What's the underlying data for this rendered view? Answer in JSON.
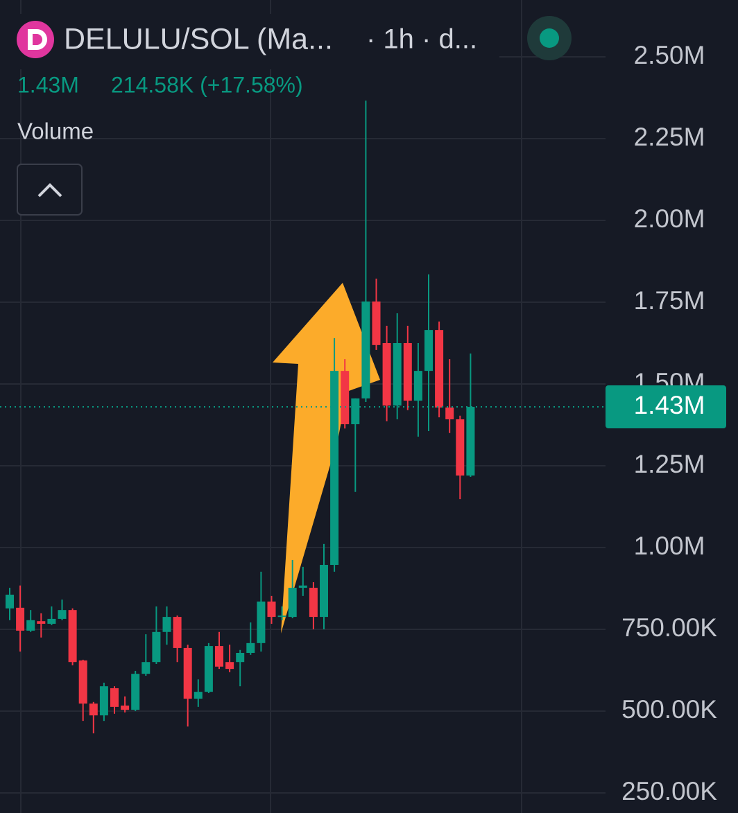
{
  "chart_data": {
    "type": "candlestick",
    "symbol": "DELULU/SOL (Ma...",
    "interval": "· 1h · d...",
    "price": "1.43M",
    "change": "214.58K (+17.58%)",
    "indicator": "Volume",
    "up_color": "#089981",
    "down_color": "#f23645",
    "open": [
      814000,
      816000,
      746000,
      775000,
      767000,
      782000,
      809000,
      655000,
      523000,
      487000,
      570000,
      517000,
      504000,
      614000,
      650000,
      742000,
      788000,
      693000,
      538000,
      559000,
      699000,
      650000,
      650000,
      678000,
      708000,
      835000,
      788000,
      788000,
      877000,
      877000,
      788000,
      947000,
      1540000,
      1377000,
      1456000,
      1752000,
      1625000,
      1434000,
      1625000,
      1449000,
      1540000,
      1665000,
      1428000,
      1392000,
      1220000
    ],
    "high": [
      877000,
      884000,
      809000,
      799000,
      820000,
      841000,
      814000,
      657000,
      528000,
      587000,
      576000,
      545000,
      623000,
      735000,
      820000,
      820000,
      792000,
      703000,
      597000,
      708000,
      742000,
      703000,
      687000,
      771000,
      926000,
      852000,
      820000,
      962000,
      941000,
      894000,
      1011000,
      1640000,
      1576000,
      1456000,
      2366000,
      1822000,
      1678000,
      1716000,
      1678000,
      1625000,
      1835000,
      1691000,
      1576000,
      1403000,
      1593000
    ],
    "low": [
      778000,
      682000,
      742000,
      725000,
      763000,
      778000,
      640000,
      470000,
      432000,
      470000,
      492000,
      496000,
      500000,
      608000,
      644000,
      703000,
      650000,
      453000,
      513000,
      555000,
      629000,
      619000,
      576000,
      672000,
      682000,
      767000,
      778000,
      784000,
      852000,
      750000,
      750000,
      926000,
      1364000,
      1170000,
      1445000,
      1604000,
      1386000,
      1392000,
      1420000,
      1339000,
      1356000,
      1398000,
      1350000,
      1148000,
      1216000
    ],
    "close": [
      856000,
      746000,
      778000,
      767000,
      782000,
      809000,
      650000,
      523000,
      487000,
      576000,
      513000,
      504000,
      614000,
      650000,
      742000,
      788000,
      693000,
      538000,
      559000,
      699000,
      636000,
      629000,
      678000,
      708000,
      835000,
      788000,
      792000,
      877000,
      884000,
      788000,
      947000,
      1540000,
      1377000,
      1456000,
      1752000,
      1619000,
      1434000,
      1625000,
      1449000,
      1540000,
      1665000,
      1428000,
      1392000,
      1220000,
      1430000
    ],
    "ylim": [
      188600,
      2673700
    ],
    "yticks": [
      {
        "value": 250000,
        "label": "250.00K"
      },
      {
        "value": 500000,
        "label": "500.00K"
      },
      {
        "value": 750000,
        "label": "750.00K"
      },
      {
        "value": 1000000,
        "label": "1.00M"
      },
      {
        "value": 1250000,
        "label": "1.25M"
      },
      {
        "value": 1500000,
        "label": "1.50M"
      },
      {
        "value": 1750000,
        "label": "1.75M"
      },
      {
        "value": 2000000,
        "label": "2.00M"
      },
      {
        "value": 2250000,
        "label": "2.25M"
      },
      {
        "value": 2500000,
        "label": "2.50M"
      }
    ],
    "last_price": {
      "value": 1430000,
      "label": "1.43M"
    },
    "grid": true
  }
}
